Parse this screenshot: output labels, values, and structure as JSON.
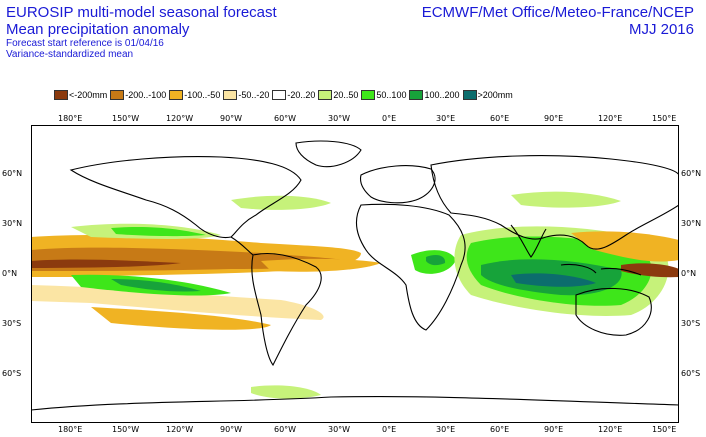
{
  "title": {
    "line1": "EUROSIP multi-model seasonal forecast",
    "line2": "Mean precipitation anomaly",
    "line3": "Forecast start reference is 01/04/16",
    "line4": "Variance-standardized mean"
  },
  "source": {
    "line1": "ECMWF/Met Office/Meteo-France/NCEP",
    "line2": "MJJ 2016"
  },
  "legend": [
    {
      "label": "<-200mm",
      "color": "#8b3a0e"
    },
    {
      "label": "-200..-100",
      "color": "#c77a16"
    },
    {
      "label": "-100..-50",
      "color": "#f0b323"
    },
    {
      "label": "-50..-20",
      "color": "#fbe5a4"
    },
    {
      "label": "-20..20",
      "color": "#ffffff"
    },
    {
      "label": "20..50",
      "color": "#c6f27a"
    },
    {
      "label": "50..100",
      "color": "#3ee61a"
    },
    {
      "label": "100..200",
      "color": "#17a33a"
    },
    {
      "label": ">200mm",
      "color": "#0c6d6d"
    }
  ],
  "lon_labels": [
    "180°E",
    "150°W",
    "120°W",
    "90°W",
    "60°W",
    "30°W",
    "0°E",
    "30°E",
    "60°E",
    "90°E",
    "120°E",
    "150°E"
  ],
  "lat_labels": [
    "60°N",
    "30°N",
    "0°N",
    "30°S",
    "60°S"
  ]
}
